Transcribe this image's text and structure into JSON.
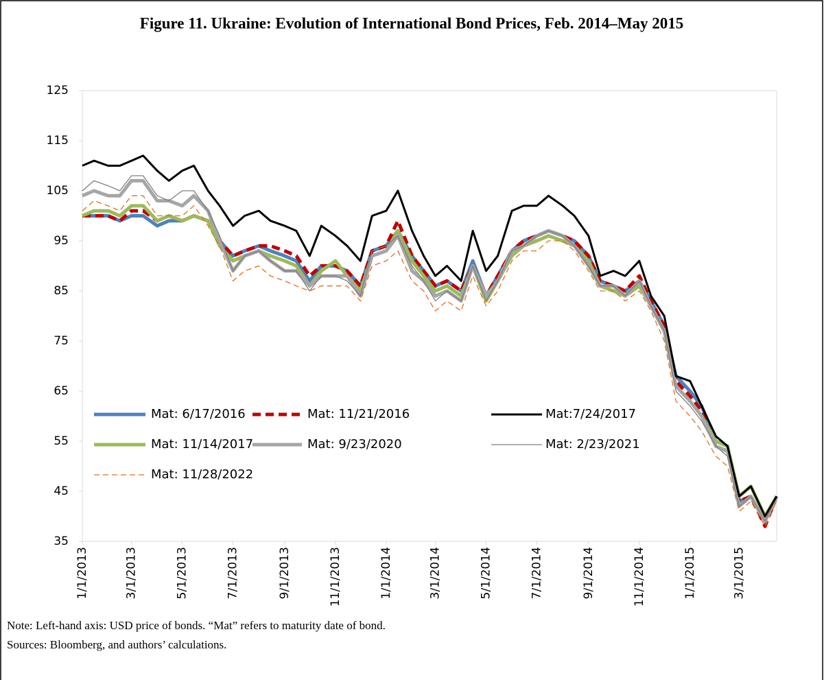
{
  "chart_data": {
    "type": "line",
    "title": "Figure 11. Ukraine: Evolution of International Bond Prices, Feb. 2014–May 2015",
    "notes": [
      "Note: Left-hand axis: USD price of bonds. “Mat” refers to maturity date of bond.",
      "Sources: Bloomberg, and authors’ calculations."
    ],
    "x": [
      "2013-01-01",
      "2013-01-15",
      "2013-02-01",
      "2013-02-15",
      "2013-03-01",
      "2013-03-15",
      "2013-04-01",
      "2013-04-15",
      "2013-05-01",
      "2013-05-15",
      "2013-06-01",
      "2013-06-15",
      "2013-07-01",
      "2013-07-15",
      "2013-08-01",
      "2013-08-15",
      "2013-09-01",
      "2013-09-15",
      "2013-10-01",
      "2013-10-15",
      "2013-11-01",
      "2013-11-15",
      "2013-12-01",
      "2013-12-15",
      "2014-01-01",
      "2014-01-15",
      "2014-02-01",
      "2014-02-15",
      "2014-03-01",
      "2014-03-15",
      "2014-04-01",
      "2014-04-15",
      "2014-05-01",
      "2014-05-15",
      "2014-06-01",
      "2014-06-15",
      "2014-07-01",
      "2014-07-15",
      "2014-08-01",
      "2014-08-15",
      "2014-09-01",
      "2014-09-15",
      "2014-10-01",
      "2014-10-15",
      "2014-11-01",
      "2014-11-15",
      "2014-12-01",
      "2014-12-15",
      "2015-01-01",
      "2015-01-15",
      "2015-02-01",
      "2015-02-15",
      "2015-03-01",
      "2015-03-15",
      "2015-04-01",
      "2015-04-15"
    ],
    "xlim": [
      "2013-01-01",
      "2015-04-15"
    ],
    "xticks": [
      {
        "value": "2013-01-01",
        "label": "1/1/2013"
      },
      {
        "value": "2013-03-01",
        "label": "3/1/2013"
      },
      {
        "value": "2013-05-01",
        "label": "5/1/2013"
      },
      {
        "value": "2013-07-01",
        "label": "7/1/2013"
      },
      {
        "value": "2013-09-01",
        "label": "9/1/2013"
      },
      {
        "value": "2013-11-01",
        "label": "11/1/2013"
      },
      {
        "value": "2014-01-01",
        "label": "1/1/2014"
      },
      {
        "value": "2014-03-01",
        "label": "3/1/2014"
      },
      {
        "value": "2014-05-01",
        "label": "5/1/2014"
      },
      {
        "value": "2014-07-01",
        "label": "7/1/2014"
      },
      {
        "value": "2014-09-01",
        "label": "9/1/2014"
      },
      {
        "value": "2014-11-01",
        "label": "11/1/2014"
      },
      {
        "value": "2015-01-01",
        "label": "1/1/2015"
      },
      {
        "value": "2015-03-01",
        "label": "3/1/2015"
      }
    ],
    "ylim": [
      35,
      125
    ],
    "yticks": [
      35,
      45,
      55,
      65,
      75,
      85,
      95,
      105,
      115,
      125
    ],
    "grid": false,
    "series": [
      {
        "name": "Mat: 6/17/2016",
        "color": "#4f81bd",
        "style": "thick",
        "values": [
          100,
          100,
          100,
          99,
          100,
          100,
          98,
          99,
          99,
          100,
          99,
          95,
          92,
          93,
          94,
          93,
          92,
          91,
          87,
          90,
          90,
          89,
          86,
          93,
          94,
          97,
          92,
          89,
          86,
          87,
          85,
          91,
          84,
          88,
          93,
          95,
          96,
          97,
          96,
          95,
          92,
          87,
          86,
          85,
          87,
          83,
          78,
          68,
          65,
          62,
          55,
          54,
          43,
          44,
          39,
          44
        ]
      },
      {
        "name": "Mat: 11/21/2016",
        "color": "#c00000",
        "style": "thick-dashed",
        "values": [
          100,
          100,
          100,
          99,
          101,
          101,
          99,
          100,
          99,
          100,
          99,
          95,
          92,
          93,
          94,
          94,
          93,
          92,
          88,
          90,
          90,
          89,
          86,
          93,
          94,
          99,
          92,
          89,
          86,
          87,
          85,
          90,
          84,
          88,
          93,
          95,
          96,
          97,
          96,
          95,
          92,
          87,
          86,
          85,
          88,
          83,
          78,
          67,
          64,
          61,
          54,
          53,
          43,
          44,
          38,
          44
        ]
      },
      {
        "name": "Mat:7/24/2017",
        "color": "#000000",
        "style": "medium",
        "values": [
          110,
          111,
          110,
          110,
          111,
          112,
          109,
          107,
          109,
          110,
          105,
          102,
          98,
          100,
          101,
          99,
          98,
          97,
          92,
          98,
          96,
          94,
          91,
          100,
          101,
          105,
          97,
          92,
          88,
          90,
          87,
          97,
          89,
          92,
          101,
          102,
          102,
          104,
          102,
          100,
          96,
          88,
          89,
          88,
          91,
          84,
          80,
          68,
          67,
          62,
          56,
          54,
          44,
          46,
          40,
          44
        ]
      },
      {
        "name": "Mat: 11/14/2017",
        "color": "#9bbb59",
        "style": "thick",
        "values": [
          100,
          101,
          101,
          100,
          102,
          102,
          99,
          100,
          99,
          100,
          99,
          94,
          91,
          92,
          93,
          92,
          91,
          90,
          86,
          89,
          91,
          88,
          85,
          92,
          93,
          97,
          91,
          88,
          85,
          86,
          84,
          90,
          83,
          87,
          92,
          94,
          95,
          96,
          95,
          94,
          91,
          86,
          85,
          84,
          86,
          82,
          77,
          66,
          63,
          60,
          55,
          54,
          44,
          46,
          40,
          44
        ]
      },
      {
        "name": "Mat: 9/23/2020",
        "color": "#a6a6a6",
        "style": "thick",
        "values": [
          104,
          105,
          104,
          104,
          107,
          107,
          103,
          103,
          102,
          104,
          101,
          95,
          89,
          92,
          93,
          91,
          89,
          89,
          86,
          88,
          88,
          88,
          84,
          92,
          93,
          96,
          89,
          87,
          84,
          85,
          83,
          90,
          84,
          87,
          93,
          94,
          96,
          97,
          96,
          94,
          90,
          86,
          86,
          84,
          87,
          82,
          77,
          66,
          63,
          60,
          54,
          53,
          42,
          44,
          39,
          44
        ]
      },
      {
        "name": "Mat: 2/23/2021",
        "color": "#7f7f7f",
        "style": "thin",
        "values": [
          105,
          107,
          106,
          105,
          108,
          108,
          104,
          103,
          105,
          105,
          101,
          96,
          89,
          92,
          93,
          91,
          89,
          89,
          85,
          88,
          88,
          87,
          84,
          93,
          94,
          96,
          90,
          87,
          83,
          85,
          83,
          90,
          83,
          87,
          93,
          94,
          96,
          97,
          96,
          94,
          90,
          86,
          86,
          84,
          87,
          82,
          77,
          65,
          62,
          59,
          54,
          52,
          42,
          44,
          39,
          44
        ]
      },
      {
        "name": "Mat: 11/28/2022",
        "color": "#e07020",
        "style": "dashed",
        "values": [
          101,
          103,
          102,
          101,
          104,
          104,
          100,
          100,
          100,
          102,
          98,
          94,
          87,
          89,
          90,
          88,
          87,
          86,
          85,
          86,
          86,
          86,
          83,
          90,
          91,
          93,
          87,
          85,
          81,
          83,
          81,
          88,
          82,
          85,
          91,
          93,
          93,
          95,
          95,
          93,
          89,
          85,
          85,
          83,
          85,
          81,
          75,
          63,
          60,
          57,
          52,
          50,
          41,
          43,
          38,
          43
        ]
      }
    ]
  }
}
